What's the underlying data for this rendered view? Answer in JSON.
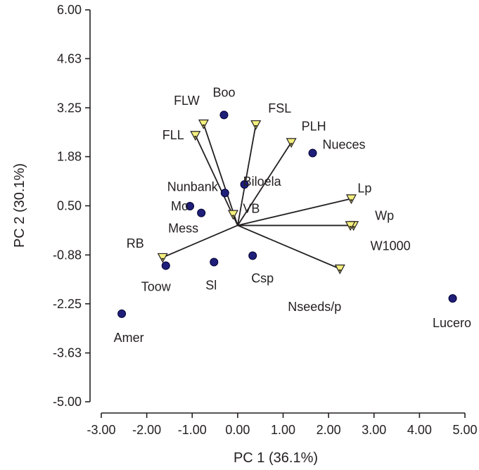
{
  "chart_data": {
    "type": "scatter",
    "title": "",
    "xlabel": "PC 1 (36.1%)",
    "ylabel": "PC 2 (30.1%)",
    "xlim": [
      -3.0,
      5.0
    ],
    "ylim": [
      -5.0,
      6.0
    ],
    "x_ticks": [
      "-3.00",
      "-2.00",
      "-1.00",
      "0.00",
      "1.00",
      "2.00",
      "3.00",
      "4.00",
      "5.00"
    ],
    "y_ticks": [
      "6.00",
      "4.63",
      "3.25",
      "1.88",
      "0.50",
      "-0.88",
      "-2.25",
      "-3.63",
      "-5.00"
    ],
    "x_tick_values": [
      -3,
      -2,
      -1,
      0,
      1,
      2,
      3,
      4,
      5
    ],
    "y_tick_values": [
      6.0,
      4.63,
      3.25,
      1.88,
      0.5,
      -0.88,
      -2.25,
      -3.63,
      -5.0
    ],
    "grid": false,
    "series": [
      {
        "marker": "circle",
        "color": "#1f1f7a",
        "points": [
          {
            "label": "Boo",
            "x": -0.3,
            "y": 3.05
          },
          {
            "label": "Nueces",
            "x": 1.65,
            "y": 1.98
          },
          {
            "label": "Biloela",
            "x": 0.15,
            "y": 1.1
          },
          {
            "label": "Nunbank",
            "x": -0.28,
            "y": 0.86
          },
          {
            "label": "Mo",
            "x": -1.05,
            "y": 0.49
          },
          {
            "label": "Mess",
            "x": -0.8,
            "y": 0.3
          },
          {
            "label": "Toow",
            "x": -1.58,
            "y": -1.18
          },
          {
            "label": "Sl",
            "x": -0.52,
            "y": -1.08
          },
          {
            "label": "Csp",
            "x": 0.33,
            "y": -0.9
          },
          {
            "label": "Amer",
            "x": -2.55,
            "y": -2.53
          },
          {
            "label": "Lucero",
            "x": 4.73,
            "y": -2.1
          }
        ]
      },
      {
        "marker": "triangle-down",
        "color": "#f4ef7c",
        "vectors": [
          {
            "label": "FLW",
            "x": -0.75,
            "y": 2.8
          },
          {
            "label": "FLL",
            "x": -0.93,
            "y": 2.48
          },
          {
            "label": "FSL",
            "x": 0.4,
            "y": 2.78
          },
          {
            "label": "PLH",
            "x": 1.18,
            "y": 2.28
          },
          {
            "label": "VB",
            "x": -0.1,
            "y": 0.26
          },
          {
            "label": "Lp",
            "x": 2.5,
            "y": 0.7
          },
          {
            "label": "Wp",
            "x": 2.55,
            "y": -0.05
          },
          {
            "label": "W1000",
            "x": 2.48,
            "y": -0.05
          },
          {
            "label": "RB",
            "x": -1.65,
            "y": -0.95
          },
          {
            "label": "Nseeds/p",
            "x": 2.25,
            "y": -1.27
          }
        ]
      }
    ],
    "origin": {
      "x": 0.0,
      "y": -0.05
    }
  }
}
